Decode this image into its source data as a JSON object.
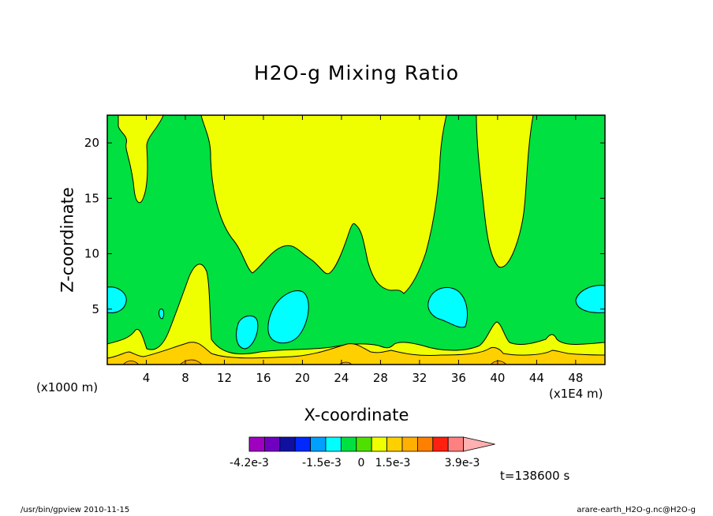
{
  "chart_data": {
    "type": "heatmap",
    "title": "H2O-g Mixing Ratio",
    "xlabel": "X-coordinate",
    "ylabel": "Z-coordinate",
    "x_unit_note": "(x1000 m)",
    "x_scale_note": "(x1E4 m)",
    "xlim": [
      0,
      51
    ],
    "ylim": [
      0,
      22.5
    ],
    "x_ticks": [
      4,
      8,
      12,
      16,
      20,
      24,
      28,
      32,
      36,
      40,
      44,
      48
    ],
    "y_ticks": [
      5,
      10,
      15,
      20
    ],
    "colorbar": {
      "colors": [
        "#a000c0",
        "#7000c0",
        "#1010a0",
        "#0028ff",
        "#00a0ff",
        "#00ffff",
        "#00e040",
        "#50e000",
        "#f0ff00",
        "#ffd000",
        "#ffb000",
        "#ff8000",
        "#ff2010",
        "#ff8080",
        "#ffb0b0"
      ],
      "labels": [
        "-4.2e-3",
        "-1.5e-3",
        "0",
        "1.5e-3",
        "3.9e-3"
      ]
    },
    "time_label": "t=138600 s"
  },
  "footer": {
    "left": "/usr/bin/gpview  2010-11-15",
    "right": "arare-earth_H2O-g.nc@H2O-g"
  }
}
